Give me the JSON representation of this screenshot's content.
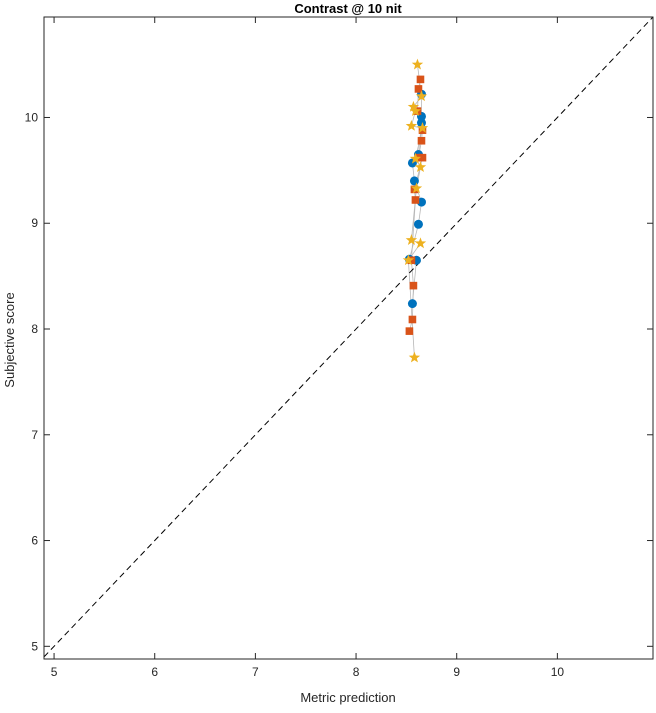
{
  "chart_data": {
    "type": "scatter",
    "title": "Contrast @ 10 nit",
    "xlabel": "Metric prediction",
    "ylabel": "Subjective score",
    "xlim": [
      4.9,
      10.95
    ],
    "ylim": [
      4.88,
      10.95
    ],
    "xticks": [
      "5",
      "6",
      "7",
      "8",
      "9",
      "10"
    ],
    "yticks": [
      "5",
      "6",
      "7",
      "8",
      "9",
      "10"
    ],
    "grid": false,
    "reference_line": {
      "style": "dashed",
      "color": "#000000",
      "from": [
        4.9,
        4.9
      ],
      "to": [
        10.95,
        10.95
      ]
    },
    "connector_color": "#b8b8b8",
    "series": [
      {
        "marker": "circle",
        "color": "#0072bd",
        "points": [
          [
            8.65,
            10.22
          ],
          [
            8.65,
            10.01
          ],
          [
            8.65,
            9.95
          ],
          [
            8.62,
            9.65
          ],
          [
            8.56,
            9.57
          ],
          [
            8.58,
            9.4
          ],
          [
            8.65,
            9.2
          ],
          [
            8.62,
            8.99
          ],
          [
            8.53,
            8.66
          ],
          [
            8.6,
            8.65
          ],
          [
            8.56,
            8.24
          ]
        ]
      },
      {
        "marker": "square",
        "color": "#d95319",
        "points": [
          [
            8.64,
            10.36
          ],
          [
            8.62,
            10.27
          ],
          [
            8.61,
            10.06
          ],
          [
            8.66,
            9.88
          ],
          [
            8.65,
            9.78
          ],
          [
            8.62,
            9.62
          ],
          [
            8.66,
            9.62
          ],
          [
            8.58,
            9.32
          ],
          [
            8.59,
            9.22
          ],
          [
            8.55,
            8.65
          ],
          [
            8.57,
            8.41
          ],
          [
            8.56,
            8.09
          ],
          [
            8.53,
            7.98
          ]
        ]
      },
      {
        "marker": "star",
        "color": "#edb120",
        "points": [
          [
            8.61,
            10.5
          ],
          [
            8.65,
            10.2
          ],
          [
            8.57,
            10.1
          ],
          [
            8.59,
            10.06
          ],
          [
            8.55,
            9.92
          ],
          [
            8.66,
            9.9
          ],
          [
            8.59,
            9.61
          ],
          [
            8.64,
            9.53
          ],
          [
            8.6,
            9.33
          ],
          [
            8.55,
            8.84
          ],
          [
            8.64,
            8.81
          ],
          [
            8.52,
            8.65
          ],
          [
            8.58,
            7.73
          ]
        ]
      }
    ]
  }
}
